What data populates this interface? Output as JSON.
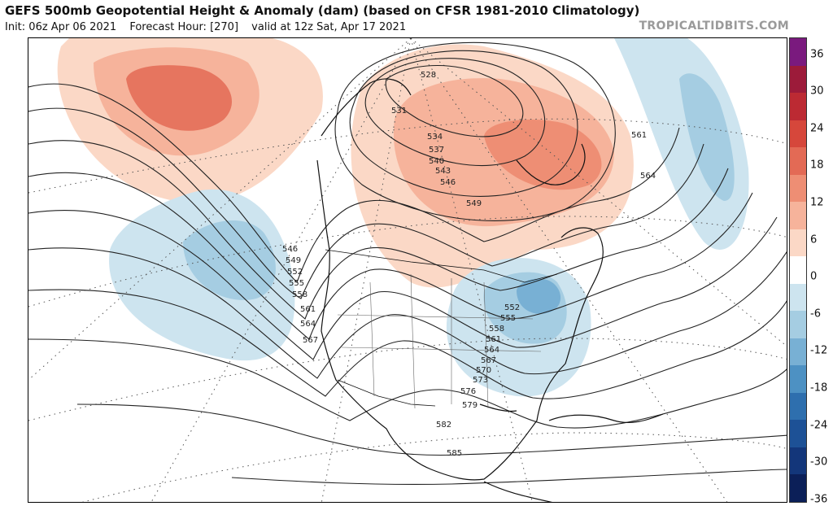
{
  "title": "GEFS 500mb Geopotential Height & Anomaly (dam) (based on CFSR 1981-2010 Climatology)",
  "init": "Init: 06z Apr 06 2021",
  "forecast_hour": "Forecast Hour: [270]",
  "valid": "valid at 12z Sat, Apr 17 2021",
  "watermark": "TROPICALTIDBITS.COM",
  "colorbar": {
    "ticks": [
      "36",
      "30",
      "24",
      "18",
      "12",
      "6",
      "0",
      "-6",
      "-12",
      "-18",
      "-24",
      "-30",
      "-36"
    ],
    "colors": [
      "#7a1a7e",
      "#9c1b3a",
      "#bc2a33",
      "#d6473b",
      "#e36a55",
      "#ee8e74",
      "#f6b39b",
      "#fbd8c6",
      "#ffffff",
      "#cde4ef",
      "#a5cde2",
      "#78b0d4",
      "#4d91c3",
      "#2e6fae",
      "#1d5196",
      "#13367a",
      "#0b1f58"
    ]
  },
  "contour_labels": [
    "528",
    "531",
    "534",
    "537",
    "540",
    "543",
    "546",
    "549",
    "552",
    "555",
    "558",
    "561",
    "564",
    "567",
    "570",
    "573",
    "576",
    "579",
    "582",
    "585"
  ],
  "west_trough_labels": [
    "546",
    "549",
    "552",
    "555",
    "558",
    "561",
    "564",
    "567"
  ],
  "east_trough_labels": [
    "552",
    "555",
    "558",
    "561",
    "564",
    "567",
    "570",
    "573",
    "576",
    "579"
  ],
  "north_labels": [
    "528",
    "531",
    "534",
    "537",
    "540",
    "543",
    "546",
    "549",
    "561",
    "564"
  ],
  "south_labels": [
    "582",
    "585"
  ]
}
